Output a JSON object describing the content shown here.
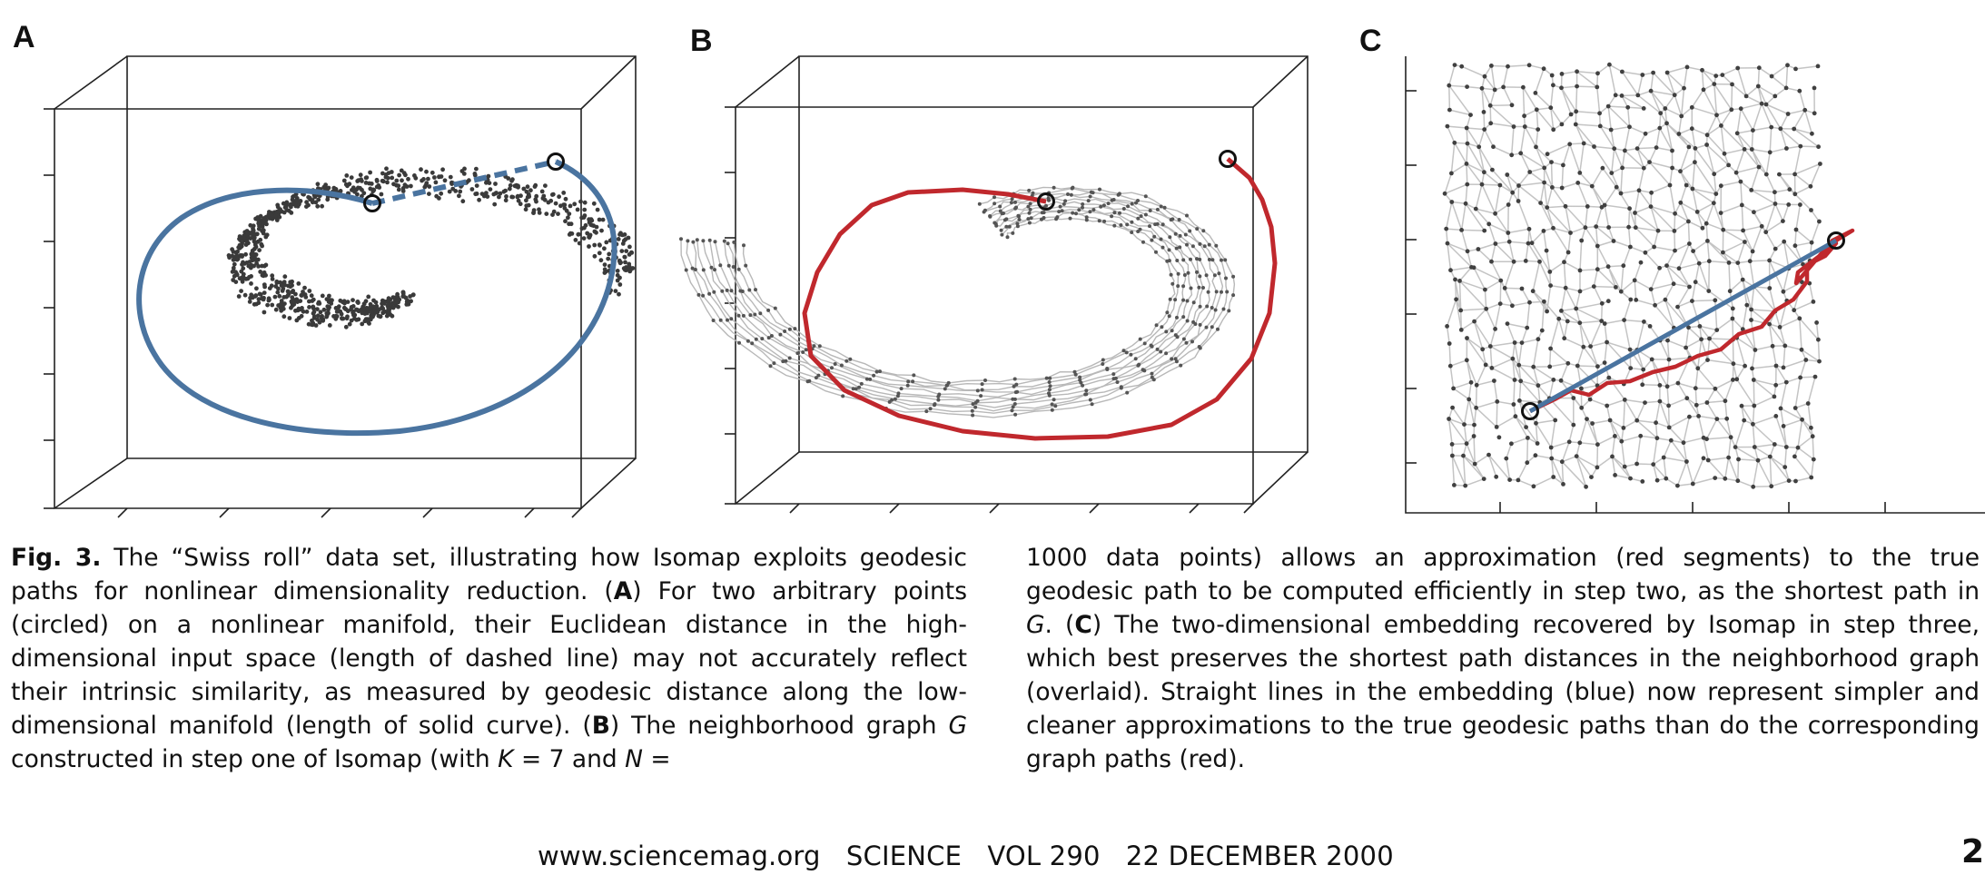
{
  "figure": {
    "panel_a_label": "A",
    "panel_b_label": "B",
    "panel_c_label": "C",
    "colors": {
      "points": "#3a3a3a",
      "geodesic_blue": "#4a74a0",
      "graph_path_red": "#c0282d",
      "graph_edges": "#b8b8b8",
      "box_lines": "#222222"
    },
    "icons": [
      "circled-endpoint-icon"
    ]
  },
  "caption": {
    "fig_label": "Fig. 3.",
    "t1": " The “Swiss roll” data set, illustrating how Isomap exploits geodesic paths for nonlinear dimensionality reduction. (",
    "a": "A",
    "t2": ") For two arbitrary points (circled) on a nonlinear manifold, their Euclidean distance in the high-dimensional input space (length of dashed line) may not accurately reflect their intrinsic similarity, as measured by geodesic distance along the low-dimensional manifold (length of solid curve). (",
    "b": "B",
    "t3": ") The neighborhood graph ",
    "g1": "G",
    "t4": " constructed in step one of Isomap (with ",
    "k": "K",
    "t5": " = 7 and ",
    "n": "N",
    "t6": " = 1000 data points) allows an approximation (red segments) to the true geodesic path to be computed efficiently in step two, as the shortest path in ",
    "g2": "G",
    "t7": ". (",
    "c": "C",
    "t8": ") The two-dimensional embedding recovered by Isomap in step three, which best preserves the shortest path distances in the neighborhood graph (overlaid). Straight lines in the embedding (blue) now represent simpler and cleaner approximations to the true geodesic paths than do the corresponding graph paths (red)."
  },
  "footer": {
    "text": "www.sciencemag.org   SCIENCE   VOL 290   22 DECEMBER 2000",
    "page_number": "2"
  }
}
